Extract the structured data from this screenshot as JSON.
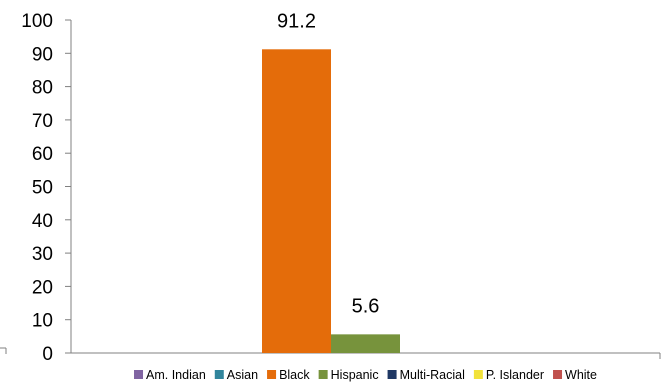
{
  "chart_data": {
    "type": "bar",
    "title": "",
    "xlabel": "",
    "ylabel": "",
    "ylim": [
      0,
      100
    ],
    "yticks": [
      0,
      10,
      20,
      30,
      40,
      50,
      60,
      70,
      80,
      90,
      100
    ],
    "categories": [
      ""
    ],
    "legend_position": "bottom",
    "series": [
      {
        "name": "Am. Indian",
        "values": [
          null
        ],
        "color": "#8064A2"
      },
      {
        "name": "Asian",
        "values": [
          null
        ],
        "color": "#31859C"
      },
      {
        "name": "Black",
        "values": [
          91.2
        ],
        "color": "#E46C0A",
        "data_label": "91.2"
      },
      {
        "name": "Hispanic",
        "values": [
          5.6
        ],
        "color": "#77933C",
        "data_label": "5.6"
      },
      {
        "name": "Multi-Racial",
        "values": [
          null
        ],
        "color": "#1F3864"
      },
      {
        "name": "P. Islander",
        "values": [
          null
        ],
        "color": "#F2E23A"
      },
      {
        "name": "White",
        "values": [
          null
        ],
        "color": "#C0504D"
      }
    ]
  }
}
